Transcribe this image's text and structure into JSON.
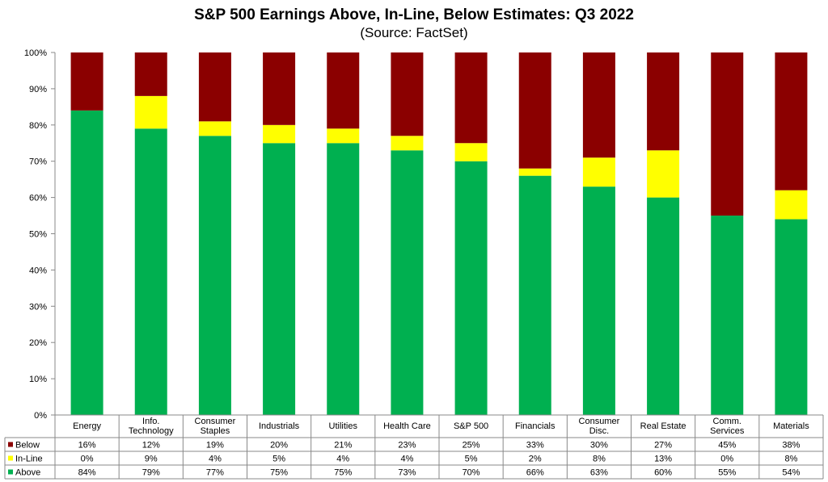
{
  "chart_data": {
    "type": "bar",
    "stacked": true,
    "title": "S&P 500 Earnings Above, In-Line, Below Estimates: Q3 2022",
    "subtitle": "(Source: FactSet)",
    "ylim": [
      0,
      100
    ],
    "yticks": [
      "0%",
      "10%",
      "20%",
      "30%",
      "40%",
      "50%",
      "60%",
      "70%",
      "80%",
      "90%",
      "100%"
    ],
    "grid": false,
    "legend": "data-table-left",
    "categories": [
      [
        "Energy"
      ],
      [
        "Info.",
        "Technology"
      ],
      [
        "Consumer",
        "Staples"
      ],
      [
        "Industrials"
      ],
      [
        "Utilities"
      ],
      [
        "Health Care"
      ],
      [
        "S&P 500"
      ],
      [
        "Financials"
      ],
      [
        "Consumer",
        "Disc."
      ],
      [
        "Real Estate"
      ],
      [
        "Comm.",
        "Services"
      ],
      [
        "Materials"
      ]
    ],
    "series": [
      {
        "name": "Above",
        "color": "#00b050",
        "values": [
          84,
          79,
          77,
          75,
          75,
          73,
          70,
          66,
          63,
          60,
          55,
          54
        ],
        "labels": [
          "84%",
          "79%",
          "77%",
          "75%",
          "75%",
          "73%",
          "70%",
          "66%",
          "63%",
          "60%",
          "55%",
          "54%"
        ]
      },
      {
        "name": "In-Line",
        "color": "#ffff00",
        "values": [
          0,
          9,
          4,
          5,
          4,
          4,
          5,
          2,
          8,
          13,
          0,
          8
        ],
        "labels": [
          "0%",
          "9%",
          "4%",
          "5%",
          "4%",
          "4%",
          "5%",
          "2%",
          "8%",
          "13%",
          "0%",
          "8%"
        ]
      },
      {
        "name": "Below",
        "color": "#8b0000",
        "values": [
          16,
          12,
          19,
          20,
          21,
          23,
          25,
          33,
          30,
          27,
          45,
          38
        ],
        "labels": [
          "16%",
          "12%",
          "19%",
          "20%",
          "21%",
          "23%",
          "25%",
          "33%",
          "30%",
          "27%",
          "45%",
          "38%"
        ]
      }
    ],
    "table_row_order": [
      "Below",
      "In-Line",
      "Above"
    ]
  }
}
